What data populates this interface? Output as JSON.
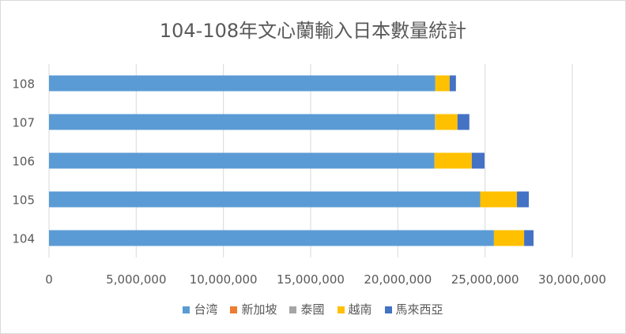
{
  "chart_data": {
    "type": "bar",
    "orientation": "horizontal",
    "stacked": true,
    "title": "104-108年文心蘭輸入日本數量統計",
    "categories": [
      "104",
      "105",
      "106",
      "107",
      "108"
    ],
    "series": [
      {
        "name": "台湾",
        "color": "#5b9bd5",
        "values": [
          25510000,
          24720000,
          22100000,
          22120000,
          22150000
        ]
      },
      {
        "name": "新加坡",
        "color": "#ed7d31",
        "values": [
          0,
          0,
          0,
          0,
          0
        ]
      },
      {
        "name": "泰國",
        "color": "#a5a5a5",
        "values": [
          0,
          0,
          0,
          30000,
          0
        ]
      },
      {
        "name": "越南",
        "color": "#ffc000",
        "values": [
          1730000,
          2110000,
          2140000,
          1270000,
          820000
        ]
      },
      {
        "name": "馬來西亞",
        "color": "#4472c4",
        "values": [
          540000,
          680000,
          730000,
          680000,
          360000
        ]
      }
    ],
    "xlim": [
      0,
      30000000
    ],
    "x_ticks": [
      "0",
      "5,000,000",
      "10,000,000",
      "15,000,000",
      "20,000,000",
      "25,000,000",
      "30,000,000"
    ],
    "grid": true,
    "legend": "bottom"
  }
}
